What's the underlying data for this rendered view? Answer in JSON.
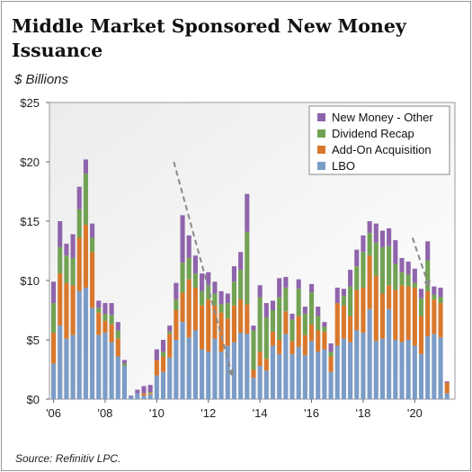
{
  "title": "Middle Market Sponsored New Money Issuance",
  "subtitle": "$ Billions",
  "source": "Source: Refinitiv LPC.",
  "chart_data": {
    "type": "bar",
    "stacked": true,
    "grid": false,
    "legend_position": "top-right",
    "ylim": [
      0,
      25
    ],
    "y_ticks": [
      0,
      5,
      10,
      15,
      20,
      25
    ],
    "y_tick_labels": [
      "$0",
      "$5",
      "$10",
      "$15",
      "$20",
      "$25"
    ],
    "x_tick_labels": [
      "'06",
      "'08",
      "'10",
      "'12",
      "'14",
      "'16",
      "'18",
      "'20"
    ],
    "quarters_per_tick": 8,
    "series": [
      {
        "name": "LBO",
        "color": "#7b9cc6",
        "values": [
          3.0,
          6.2,
          5.1,
          5.4,
          9.1,
          9.4,
          7.7,
          5.4,
          5.6,
          4.8,
          3.6,
          2.8,
          0.2,
          0.5,
          0.3,
          0.4,
          2.0,
          2.3,
          3.5,
          5.0,
          6.5,
          5.2,
          5.8,
          4.2,
          4.0,
          5.1,
          4.0,
          4.5,
          4.8,
          5.6,
          5.5,
          1.8,
          2.8,
          2.4,
          4.5,
          3.8,
          5.5,
          3.8,
          4.4,
          3.7,
          4.9,
          4.0,
          4.2,
          2.3,
          4.5,
          5.1,
          4.8,
          5.8,
          5.6,
          7.6,
          4.9,
          5.1,
          7.6,
          5.0,
          4.8,
          5.0,
          4.5,
          3.8,
          5.3,
          5.5,
          5.2,
          0.5
        ]
      },
      {
        "name": "Add-On Acquisition",
        "color": "#d9782c",
        "values": [
          2.6,
          4.4,
          4.7,
          4.2,
          4.5,
          5.3,
          4.7,
          1.9,
          1.0,
          1.5,
          1.5,
          0.0,
          0.0,
          0.0,
          0.2,
          0.1,
          1.3,
          1.3,
          2.0,
          2.5,
          2.5,
          4.9,
          3.6,
          3.7,
          4.4,
          2.8,
          3.3,
          2.3,
          3.1,
          2.8,
          2.5,
          0.7,
          1.2,
          1.0,
          1.2,
          1.2,
          1.9,
          1.1,
          2.6,
          1.7,
          1.4,
          1.8,
          1.5,
          1.3,
          3.6,
          2.8,
          2.2,
          3.4,
          3.8,
          4.5,
          5.5,
          3.8,
          2.0,
          4.2,
          4.8,
          4.5,
          4.9,
          3.2,
          3.8,
          2.9,
          2.9,
          0.9
        ]
      },
      {
        "name": "Dividend Recap",
        "color": "#72a253",
        "values": [
          2.5,
          2.2,
          2.3,
          2.3,
          2.4,
          4.3,
          1.2,
          0.4,
          0.6,
          0.8,
          0.7,
          0.2,
          0.0,
          0.0,
          0.0,
          0.1,
          0.0,
          0.4,
          0.2,
          0.9,
          2.5,
          1.8,
          1.2,
          1.2,
          1.2,
          1.0,
          0.7,
          1.3,
          2.0,
          2.5,
          6.1,
          3.3,
          4.6,
          3.5,
          1.8,
          3.6,
          2.0,
          1.8,
          2.3,
          1.8,
          2.7,
          1.2,
          0.4,
          0.4,
          0.0,
          0.8,
          2.5,
          2.0,
          3.0,
          1.9,
          2.8,
          3.9,
          3.3,
          2.2,
          1.1,
          1.0,
          0.4,
          1.5,
          2.6,
          0.4,
          0.5,
          0.0
        ]
      },
      {
        "name": "New Money - Other",
        "color": "#8f64ac",
        "values": [
          1.8,
          2.2,
          1.0,
          2.0,
          1.9,
          1.2,
          1.2,
          0.6,
          0.9,
          1.0,
          0.7,
          0.3,
          0.1,
          0.3,
          0.6,
          0.6,
          0.9,
          1.0,
          0.5,
          1.4,
          4.0,
          1.9,
          1.5,
          1.5,
          1.1,
          1.0,
          1.1,
          0.8,
          1.3,
          1.5,
          3.2,
          0.4,
          1.0,
          1.2,
          0.8,
          1.6,
          0.9,
          0.5,
          0.8,
          0.6,
          0.7,
          0.8,
          0.4,
          0.7,
          1.3,
          0.6,
          1.4,
          1.4,
          1.4,
          1.0,
          1.6,
          1.4,
          1.5,
          2.0,
          1.2,
          1.1,
          1.2,
          0.8,
          1.6,
          0.7,
          0.8,
          0.1
        ]
      }
    ],
    "arrows": [
      {
        "from": [
          19,
          20.0
        ],
        "to": [
          28,
          2.1
        ]
      },
      {
        "from": [
          56,
          13.6
        ],
        "to": [
          58.5,
          9.6
        ]
      }
    ]
  }
}
